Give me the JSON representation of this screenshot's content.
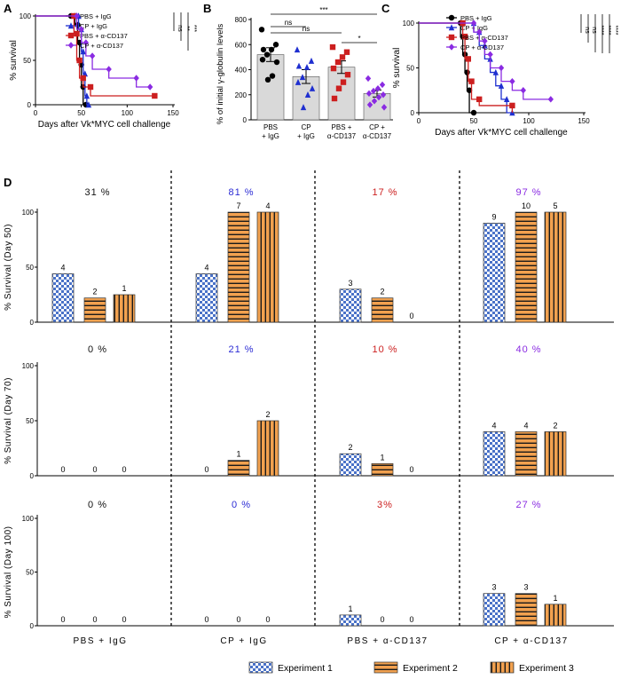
{
  "colors": {
    "pbs_igg": "#000000",
    "cp_igg": "#1f2fd0",
    "pbs_acd137": "#cc1f1f",
    "cp_acd137": "#8a2be2",
    "bar_orange": "#f2a14f",
    "bar_blue": "#4a72c8",
    "pct_black": "#111111",
    "pct_blue": "#2b2bd4",
    "pct_red": "#cc1f1f",
    "pct_purple": "#8a2be2"
  },
  "chart_data": [
    {
      "panel": "A",
      "type": "line",
      "xlabel": "Days after Vk*MYC cell challenge",
      "ylabel": "% survival",
      "xlim": [
        0,
        150
      ],
      "ylim": [
        0,
        100
      ],
      "xticks": [
        "0",
        "50",
        "100",
        "150"
      ],
      "yticks": [
        "0",
        "50",
        "100"
      ],
      "series": [
        {
          "name": "PBS + IgG",
          "color_key": "pbs_igg",
          "marker": "circle",
          "points": [
            [
              0,
              100
            ],
            [
              43,
              100
            ],
            [
              43,
              90
            ],
            [
              46,
              90
            ],
            [
              46,
              70
            ],
            [
              48,
              70
            ],
            [
              48,
              45
            ],
            [
              50,
              45
            ],
            [
              50,
              20
            ],
            [
              52,
              20
            ],
            [
              52,
              0
            ],
            [
              55,
              0
            ]
          ]
        },
        {
          "name": "CP + IgG",
          "color_key": "cp_igg",
          "marker": "triangle",
          "points": [
            [
              0,
              100
            ],
            [
              47,
              100
            ],
            [
              47,
              85
            ],
            [
              50,
              85
            ],
            [
              50,
              60
            ],
            [
              52,
              60
            ],
            [
              52,
              35
            ],
            [
              54,
              35
            ],
            [
              54,
              10
            ],
            [
              56,
              10
            ],
            [
              56,
              0
            ],
            [
              58,
              0
            ]
          ]
        },
        {
          "name": "PBS + α-CD137",
          "color_key": "pbs_acd137",
          "marker": "square",
          "points": [
            [
              0,
              100
            ],
            [
              42,
              100
            ],
            [
              42,
              80
            ],
            [
              45,
              80
            ],
            [
              45,
              50
            ],
            [
              48,
              50
            ],
            [
              48,
              30
            ],
            [
              52,
              30
            ],
            [
              52,
              20
            ],
            [
              60,
              20
            ],
            [
              60,
              10
            ],
            [
              130,
              10
            ]
          ]
        },
        {
          "name": "CP + α-CD137",
          "color_key": "cp_acd137",
          "marker": "diamond",
          "points": [
            [
              0,
              100
            ],
            [
              45,
              100
            ],
            [
              45,
              85
            ],
            [
              50,
              85
            ],
            [
              50,
              70
            ],
            [
              55,
              70
            ],
            [
              55,
              55
            ],
            [
              62,
              55
            ],
            [
              62,
              40
            ],
            [
              80,
              40
            ],
            [
              80,
              30
            ],
            [
              110,
              30
            ],
            [
              110,
              20
            ],
            [
              125,
              20
            ]
          ]
        }
      ],
      "significance": [
        "ns",
        "**",
        "***"
      ]
    },
    {
      "panel": "B",
      "type": "bar",
      "ylabel": "% of initial γ-globulin levels",
      "ylim": [
        0,
        800
      ],
      "yticks": [
        "0",
        "200",
        "400",
        "600",
        "800"
      ],
      "categories": [
        {
          "line1": "PBS",
          "line2": "+ IgG"
        },
        {
          "line1": "CP",
          "line2": "+ IgG"
        },
        {
          "line1": "PBS +",
          "line2": "α-CD137"
        },
        {
          "line1": "CP +",
          "line2": "α-CD137"
        }
      ],
      "values": [
        520,
        345,
        420,
        210
      ],
      "errors": [
        55,
        55,
        50,
        28
      ],
      "points": [
        [
          720,
          600,
          560,
          520,
          480,
          460,
          350,
          320,
          560
        ],
        [
          560,
          470,
          420,
          340,
          300,
          250,
          200,
          100,
          430
        ],
        [
          580,
          540,
          500,
          460,
          410,
          360,
          300,
          250,
          170
        ],
        [
          330,
          280,
          250,
          230,
          210,
          200,
          180,
          150,
          120,
          100
        ]
      ],
      "point_color_keys": [
        "pbs_igg",
        "cp_igg",
        "pbs_acd137",
        "cp_acd137"
      ],
      "comparisons": [
        {
          "from": 0,
          "to": 1,
          "label": "ns"
        },
        {
          "from": 0,
          "to": 2,
          "label": "ns"
        },
        {
          "from": 0,
          "to": 3,
          "label": "***"
        },
        {
          "from": 2,
          "to": 3,
          "label": "*"
        }
      ]
    },
    {
      "panel": "C",
      "type": "line",
      "xlabel": "Days after Vk*MYC cell challenge",
      "ylabel": "% survival",
      "xlim": [
        0,
        150
      ],
      "ylim": [
        0,
        100
      ],
      "xticks": [
        "0",
        "50",
        "100",
        "150"
      ],
      "yticks": [
        "0",
        "50",
        "100"
      ],
      "series": [
        {
          "name": "PBS + IgG",
          "color_key": "pbs_igg",
          "marker": "circle",
          "points": [
            [
              0,
              100
            ],
            [
              38,
              100
            ],
            [
              38,
              85
            ],
            [
              40,
              85
            ],
            [
              40,
              65
            ],
            [
              42,
              65
            ],
            [
              42,
              45
            ],
            [
              44,
              45
            ],
            [
              44,
              25
            ],
            [
              46,
              25
            ],
            [
              46,
              0
            ],
            [
              50,
              0
            ]
          ]
        },
        {
          "name": "CP + IgG",
          "color_key": "cp_igg",
          "marker": "triangle",
          "points": [
            [
              0,
              100
            ],
            [
              50,
              100
            ],
            [
              50,
              90
            ],
            [
              55,
              90
            ],
            [
              55,
              75
            ],
            [
              60,
              75
            ],
            [
              60,
              60
            ],
            [
              65,
              60
            ],
            [
              65,
              45
            ],
            [
              70,
              45
            ],
            [
              70,
              30
            ],
            [
              75,
              30
            ],
            [
              75,
              15
            ],
            [
              80,
              15
            ],
            [
              80,
              0
            ],
            [
              85,
              0
            ]
          ]
        },
        {
          "name": "PBS + α-CD137",
          "color_key": "pbs_acd137",
          "marker": "square",
          "points": [
            [
              0,
              100
            ],
            [
              40,
              100
            ],
            [
              40,
              85
            ],
            [
              42,
              85
            ],
            [
              42,
              60
            ],
            [
              45,
              60
            ],
            [
              45,
              35
            ],
            [
              48,
              35
            ],
            [
              48,
              15
            ],
            [
              55,
              15
            ],
            [
              55,
              8
            ],
            [
              85,
              8
            ],
            [
              85,
              0
            ]
          ]
        },
        {
          "name": "CP + α-CD137",
          "color_key": "cp_acd137",
          "marker": "diamond",
          "points": [
            [
              0,
              100
            ],
            [
              50,
              100
            ],
            [
              50,
              90
            ],
            [
              55,
              90
            ],
            [
              55,
              80
            ],
            [
              60,
              80
            ],
            [
              60,
              65
            ],
            [
              65,
              65
            ],
            [
              65,
              50
            ],
            [
              75,
              50
            ],
            [
              75,
              35
            ],
            [
              85,
              35
            ],
            [
              85,
              25
            ],
            [
              95,
              25
            ],
            [
              95,
              15
            ],
            [
              120,
              15
            ]
          ]
        }
      ],
      "significance": [
        "ns",
        "ns",
        "****",
        "****",
        "****"
      ]
    },
    {
      "panel": "D",
      "type": "bar",
      "categories": [
        "PBS + IgG",
        "CP + IgG",
        "PBS + α-CD137",
        "CP + α-CD137"
      ],
      "legend": [
        "Experiment 1",
        "Experiment 2",
        "Experiment 3"
      ],
      "legend_position": "bottom",
      "ylim": [
        0,
        100
      ],
      "yticks": [
        "0",
        "50",
        "100"
      ],
      "rows": [
        {
          "ylabel": "% Survival (Day 50)",
          "percent_labels": [
            "31 %",
            "81 %",
            "17 %",
            "97 %"
          ],
          "values": [
            [
              44,
              22,
              25
            ],
            [
              44,
              100,
              100
            ],
            [
              30,
              22,
              0
            ],
            [
              90,
              100,
              100
            ]
          ],
          "counts": [
            [
              "4",
              "2",
              "1"
            ],
            [
              "4",
              "7",
              "4"
            ],
            [
              "3",
              "2",
              "0"
            ],
            [
              "9",
              "10",
              "5"
            ]
          ]
        },
        {
          "ylabel": "% Survival (Day 70)",
          "percent_labels": [
            "0 %",
            "21 %",
            "10 %",
            "40 %"
          ],
          "values": [
            [
              0,
              0,
              0
            ],
            [
              0,
              14,
              50
            ],
            [
              20,
              11,
              0
            ],
            [
              40,
              40,
              40
            ]
          ],
          "counts": [
            [
              "0",
              "0",
              "0"
            ],
            [
              "0",
              "1",
              "2"
            ],
            [
              "2",
              "1",
              "0"
            ],
            [
              "4",
              "4",
              "2"
            ]
          ]
        },
        {
          "ylabel": "% Survival (Day 100)",
          "percent_labels": [
            "0 %",
            "0 %",
            "3%",
            "27 %"
          ],
          "values": [
            [
              0,
              0,
              0
            ],
            [
              0,
              0,
              0
            ],
            [
              10,
              0,
              0
            ],
            [
              30,
              30,
              20
            ]
          ],
          "counts": [
            [
              "0",
              "0",
              "0"
            ],
            [
              "0",
              "0",
              "0"
            ],
            [
              "1",
              "0",
              "0"
            ],
            [
              "3",
              "3",
              "1"
            ]
          ]
        }
      ]
    }
  ],
  "panel_labels": [
    "A",
    "B",
    "C",
    "D"
  ]
}
